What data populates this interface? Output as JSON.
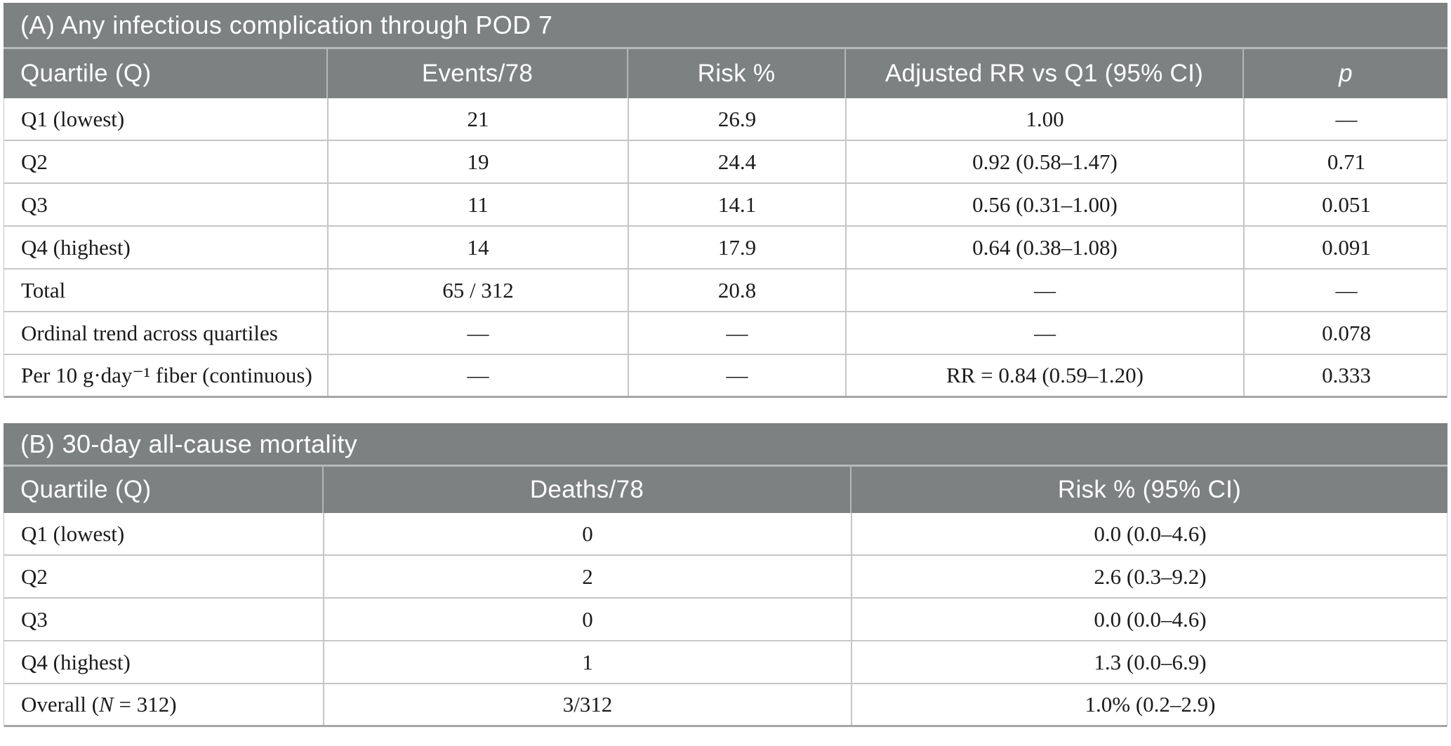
{
  "colors": {
    "panel_header_bg": "#7e8182",
    "header_text": "#ffffff",
    "body_text": "#1b1b1b",
    "grid_line": "#c6c6c6",
    "band_separator": "#b7baba",
    "panel_bottom_border": "#a5a5a5"
  },
  "panelA": {
    "title": "(A) Any infectious complication through POD 7",
    "columns": [
      "Quartile (Q)",
      "Events/78",
      "Risk %",
      "Adjusted RR vs Q1 (95% CI)",
      "p"
    ],
    "rows": [
      [
        "Q1 (lowest)",
        "21",
        "26.9",
        "1.00",
        "—"
      ],
      [
        "Q2",
        "19",
        "24.4",
        "0.92 (0.58–1.47)",
        "0.71"
      ],
      [
        "Q3",
        "11",
        "14.1",
        "0.56 (0.31–1.00)",
        "0.051"
      ],
      [
        "Q4 (highest)",
        "14",
        "17.9",
        "0.64 (0.38–1.08)",
        "0.091"
      ],
      [
        "Total",
        "65 / 312",
        "20.8",
        "—",
        "—"
      ],
      [
        "Ordinal trend across quartiles",
        "—",
        "—",
        "—",
        "0.078"
      ],
      [
        "Per 10 g·day⁻¹ fiber (continuous)",
        "—",
        "—",
        "RR = 0.84 (0.59–1.20)",
        "0.333"
      ]
    ]
  },
  "panelB": {
    "title": "(B) 30-day all-cause mortality",
    "columns": [
      "Quartile (Q)",
      "Deaths/78",
      "Risk % (95% CI)"
    ],
    "rows": [
      [
        "Q1 (lowest)",
        "0",
        "0.0 (0.0–4.6)"
      ],
      [
        "Q2",
        "2",
        "2.6 (0.3–9.2)"
      ],
      [
        "Q3",
        "0",
        "0.0 (0.0–4.6)"
      ],
      [
        "Q4 (highest)",
        "1",
        "1.3 (0.0–6.9)"
      ],
      [
        "",
        "3/312",
        "1.0% (0.2–2.9)"
      ]
    ],
    "overall_parts": {
      "pre": "Overall (",
      "it": "N",
      "post": " = 312)"
    }
  }
}
